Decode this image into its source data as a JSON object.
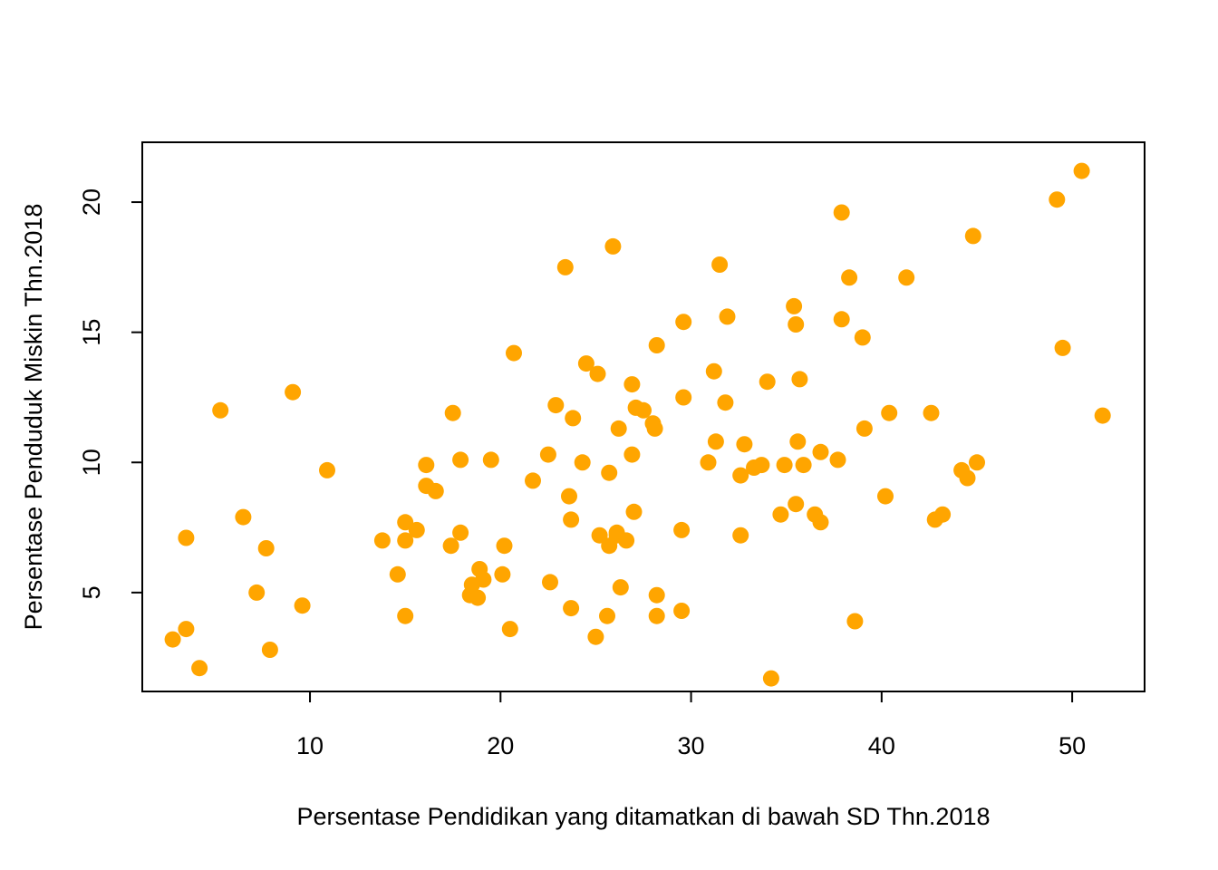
{
  "chart_data": {
    "type": "scatter",
    "title": "",
    "xlabel": "Persentase Pendidikan yang ditamatkan di bawah SD Thn.2018",
    "ylabel": "Persentase Penduduk Miskin Thn.2018",
    "xlim": [
      1.2,
      53.8
    ],
    "ylim": [
      1.2,
      22.3
    ],
    "x_ticks": [
      "10",
      "20",
      "30",
      "40",
      "50"
    ],
    "y_ticks": [
      "5",
      "10",
      "15",
      "20"
    ],
    "grid": false,
    "legend": "none",
    "marker_color": "#FFA500",
    "points": [
      [
        2.8,
        3.2
      ],
      [
        3.5,
        3.6
      ],
      [
        3.5,
        7.1
      ],
      [
        4.2,
        2.1
      ],
      [
        5.3,
        12.0
      ],
      [
        6.5,
        7.9
      ],
      [
        7.2,
        5.0
      ],
      [
        7.7,
        6.7
      ],
      [
        7.9,
        2.8
      ],
      [
        9.1,
        12.7
      ],
      [
        9.6,
        4.5
      ],
      [
        10.9,
        9.7
      ],
      [
        13.8,
        7.0
      ],
      [
        14.6,
        5.7
      ],
      [
        15.0,
        4.1
      ],
      [
        15.0,
        7.0
      ],
      [
        15.0,
        7.7
      ],
      [
        15.6,
        7.4
      ],
      [
        16.1,
        9.1
      ],
      [
        16.1,
        9.9
      ],
      [
        16.6,
        8.9
      ],
      [
        17.4,
        6.8
      ],
      [
        17.5,
        11.9
      ],
      [
        17.9,
        7.3
      ],
      [
        17.9,
        10.1
      ],
      [
        18.4,
        4.9
      ],
      [
        18.5,
        5.3
      ],
      [
        18.8,
        4.8
      ],
      [
        18.9,
        5.9
      ],
      [
        19.1,
        5.5
      ],
      [
        19.5,
        10.1
      ],
      [
        20.1,
        5.7
      ],
      [
        20.2,
        6.8
      ],
      [
        20.5,
        3.6
      ],
      [
        20.7,
        14.2
      ],
      [
        21.7,
        9.3
      ],
      [
        22.5,
        10.3
      ],
      [
        22.6,
        5.4
      ],
      [
        22.9,
        12.2
      ],
      [
        23.4,
        17.5
      ],
      [
        23.6,
        8.7
      ],
      [
        23.7,
        4.4
      ],
      [
        23.7,
        7.8
      ],
      [
        23.8,
        11.7
      ],
      [
        24.3,
        10.0
      ],
      [
        24.5,
        13.8
      ],
      [
        25.0,
        3.3
      ],
      [
        25.1,
        13.4
      ],
      [
        25.2,
        7.2
      ],
      [
        25.6,
        4.1
      ],
      [
        25.7,
        6.8
      ],
      [
        25.7,
        9.6
      ],
      [
        25.9,
        18.3
      ],
      [
        26.1,
        7.2
      ],
      [
        26.1,
        7.3
      ],
      [
        26.2,
        11.3
      ],
      [
        26.3,
        5.2
      ],
      [
        26.6,
        7.0
      ],
      [
        26.9,
        10.3
      ],
      [
        26.9,
        13.0
      ],
      [
        27.0,
        8.1
      ],
      [
        27.1,
        12.1
      ],
      [
        27.5,
        12.0
      ],
      [
        28.0,
        11.5
      ],
      [
        28.1,
        11.3
      ],
      [
        28.2,
        4.9
      ],
      [
        28.2,
        4.1
      ],
      [
        28.2,
        14.5
      ],
      [
        29.5,
        4.3
      ],
      [
        29.5,
        7.4
      ],
      [
        29.6,
        12.5
      ],
      [
        29.6,
        15.4
      ],
      [
        30.9,
        10.0
      ],
      [
        31.2,
        13.5
      ],
      [
        31.3,
        10.8
      ],
      [
        31.5,
        17.6
      ],
      [
        31.8,
        12.3
      ],
      [
        31.9,
        15.6
      ],
      [
        32.6,
        9.5
      ],
      [
        32.6,
        7.2
      ],
      [
        32.8,
        10.7
      ],
      [
        33.3,
        9.8
      ],
      [
        33.7,
        9.9
      ],
      [
        34.0,
        13.1
      ],
      [
        34.2,
        1.7
      ],
      [
        34.7,
        8.0
      ],
      [
        34.9,
        9.9
      ],
      [
        35.4,
        16.0
      ],
      [
        35.5,
        15.3
      ],
      [
        35.5,
        8.4
      ],
      [
        35.6,
        10.8
      ],
      [
        35.7,
        13.2
      ],
      [
        35.9,
        9.9
      ],
      [
        36.5,
        8.0
      ],
      [
        36.8,
        10.4
      ],
      [
        36.8,
        7.7
      ],
      [
        37.7,
        10.1
      ],
      [
        37.9,
        19.6
      ],
      [
        37.9,
        15.5
      ],
      [
        38.3,
        17.1
      ],
      [
        38.6,
        3.9
      ],
      [
        39.0,
        14.8
      ],
      [
        39.1,
        11.3
      ],
      [
        40.2,
        8.7
      ],
      [
        40.4,
        11.9
      ],
      [
        41.3,
        17.1
      ],
      [
        42.6,
        11.9
      ],
      [
        42.8,
        7.8
      ],
      [
        43.2,
        8.0
      ],
      [
        44.2,
        9.7
      ],
      [
        44.5,
        9.4
      ],
      [
        44.8,
        18.7
      ],
      [
        45.0,
        10.0
      ],
      [
        49.2,
        20.1
      ],
      [
        49.5,
        14.4
      ],
      [
        50.5,
        21.2
      ],
      [
        51.6,
        11.8
      ]
    ]
  }
}
